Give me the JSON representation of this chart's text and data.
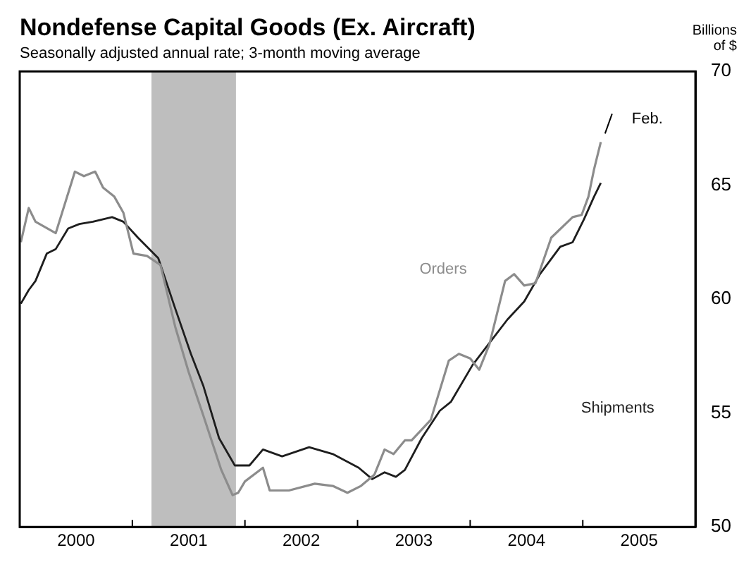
{
  "chart_data": {
    "type": "line",
    "title": "Nondefense Capital Goods (Ex. Aircraft)",
    "subtitle": "Seasonally adjusted annual rate; 3-month moving average",
    "ylabel": "Billions of $",
    "xlim": [
      2000,
      2006
    ],
    "xticks": [
      {
        "value": 2000.5,
        "label": "2000"
      },
      {
        "value": 2001,
        "label": null
      },
      {
        "value": 2001.5,
        "label": "2001"
      },
      {
        "value": 2002,
        "label": null
      },
      {
        "value": 2002.5,
        "label": "2002"
      },
      {
        "value": 2003,
        "label": null
      },
      {
        "value": 2003.5,
        "label": "2003"
      },
      {
        "value": 2004,
        "label": null
      },
      {
        "value": 2004.5,
        "label": "2004"
      },
      {
        "value": 2005,
        "label": null
      },
      {
        "value": 2005.5,
        "label": "2005"
      }
    ],
    "ylim": [
      50,
      70
    ],
    "yticks": [
      50,
      55,
      60,
      65,
      70
    ],
    "grid": false,
    "legend": false,
    "bands": [
      {
        "axis": "x",
        "from": 2001.17,
        "to": 2001.92,
        "color": "#bebebe"
      }
    ],
    "annotations": [
      {
        "text": "Feb.",
        "x": 2005.16,
        "y": 66.9
      }
    ],
    "series": [
      {
        "name": "Orders",
        "color": "#8c8c8c",
        "x": [
          2000.01,
          2000.08,
          2000.14,
          2000.32,
          2000.49,
          2000.57,
          2000.67,
          2000.74,
          2000.84,
          2000.92,
          2001.01,
          2001.13,
          2001.25,
          2001.38,
          2001.5,
          2001.63,
          2001.79,
          2001.89,
          2001.94,
          2002.0,
          2002.16,
          2002.22,
          2002.39,
          2002.62,
          2002.78,
          2002.91,
          2003.03,
          2003.15,
          2003.24,
          2003.32,
          2003.42,
          2003.48,
          2003.65,
          2003.81,
          2003.9,
          2004.0,
          2004.08,
          2004.17,
          2004.31,
          2004.39,
          2004.48,
          2004.58,
          2004.72,
          2004.91,
          2004.99,
          2005.05,
          2005.1,
          2005.16
        ],
        "values": [
          62.5,
          64.0,
          63.4,
          62.9,
          65.6,
          65.4,
          65.6,
          64.9,
          64.5,
          63.8,
          62.0,
          61.9,
          61.5,
          58.8,
          56.8,
          54.9,
          52.5,
          51.4,
          51.5,
          52.0,
          52.6,
          51.6,
          51.6,
          51.9,
          51.8,
          51.5,
          51.8,
          52.3,
          53.4,
          53.2,
          53.8,
          53.8,
          54.7,
          57.3,
          57.6,
          57.4,
          56.9,
          58.0,
          60.8,
          61.1,
          60.6,
          60.7,
          62.7,
          63.6,
          63.7,
          64.5,
          65.7,
          66.9
        ]
      },
      {
        "name": "Shipments",
        "color": "#1e1e1e",
        "x": [
          2000.01,
          2000.08,
          2000.14,
          2000.24,
          2000.32,
          2000.43,
          2000.53,
          2000.65,
          2000.82,
          2000.92,
          2001.05,
          2001.23,
          2001.38,
          2001.52,
          2001.63,
          2001.77,
          2001.91,
          2002.04,
          2002.16,
          2002.33,
          2002.57,
          2002.78,
          2003.01,
          2003.13,
          2003.24,
          2003.34,
          2003.42,
          2003.57,
          2003.73,
          2003.83,
          2004.02,
          2004.19,
          2004.33,
          2004.48,
          2004.62,
          2004.8,
          2004.91,
          2005.01,
          2005.1,
          2005.16
        ],
        "values": [
          59.8,
          60.4,
          60.8,
          62.0,
          62.2,
          63.1,
          63.3,
          63.4,
          63.6,
          63.4,
          62.7,
          61.8,
          59.6,
          57.6,
          56.2,
          53.9,
          52.7,
          52.7,
          53.4,
          53.1,
          53.5,
          53.2,
          52.6,
          52.1,
          52.4,
          52.2,
          52.5,
          53.9,
          55.1,
          55.5,
          57.1,
          58.2,
          59.1,
          59.9,
          61.1,
          62.3,
          62.5,
          63.5,
          64.5,
          65.1
        ]
      }
    ]
  }
}
